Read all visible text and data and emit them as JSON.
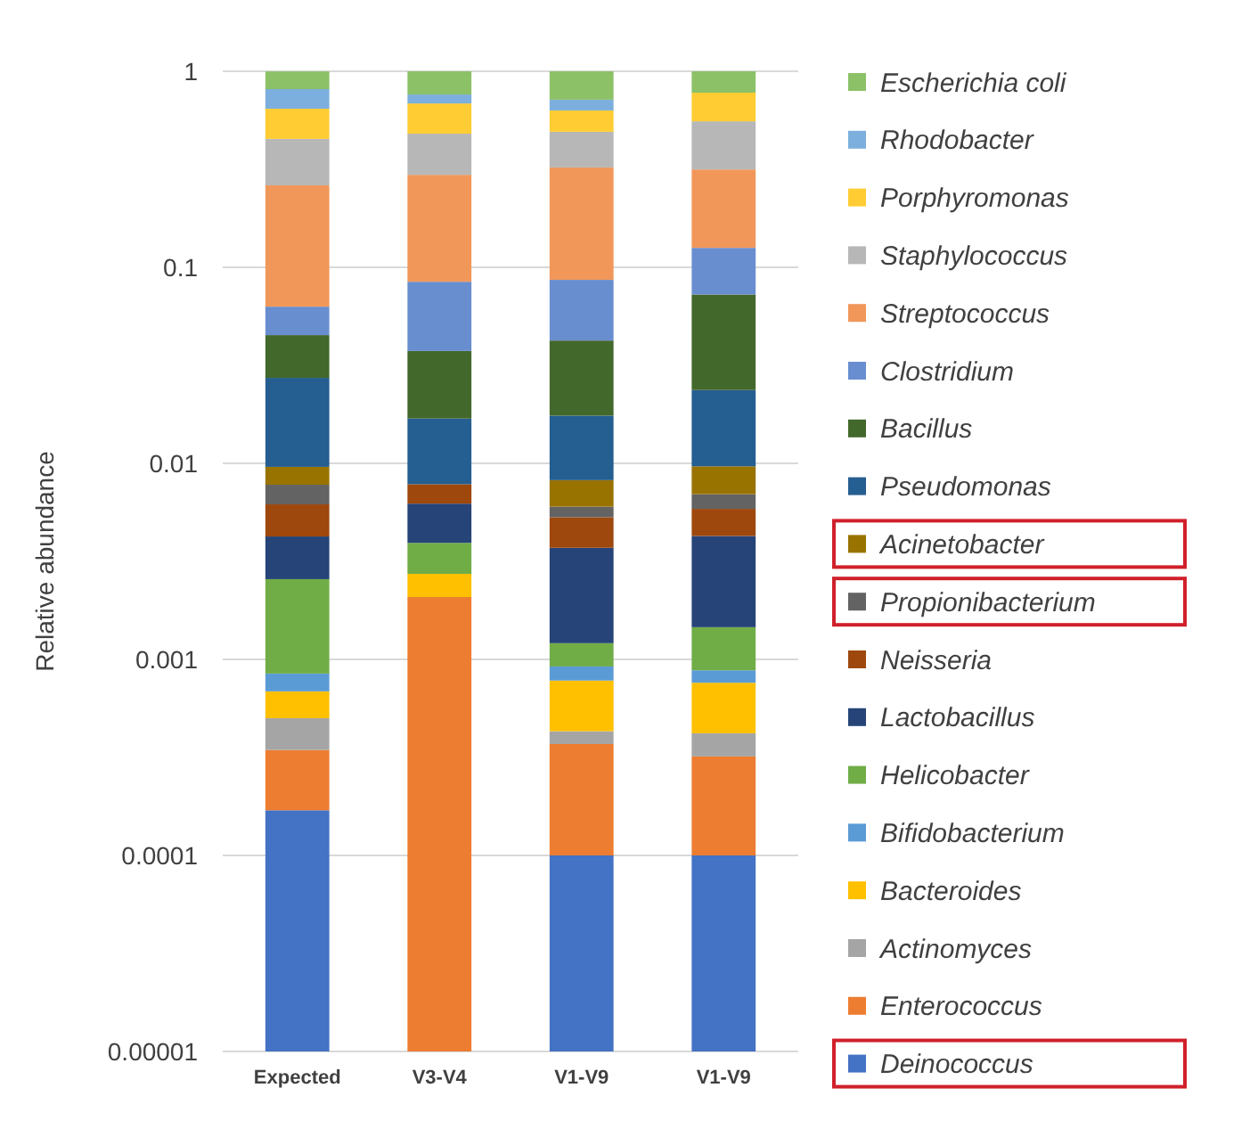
{
  "chart_data": {
    "type": "bar",
    "stacked": true,
    "log": true,
    "ylabel": "Relative abundance",
    "categories": [
      "Expected",
      "V3-V4",
      "V1-V9",
      "V1-V9"
    ],
    "ylim": [
      1e-05,
      1
    ],
    "yticks": [
      {
        "value": 1e-05,
        "label": "0.00001"
      },
      {
        "value": 0.0001,
        "label": "0.0001"
      },
      {
        "value": 0.001,
        "label": "0.001"
      },
      {
        "value": 0.01,
        "label": "0.01"
      },
      {
        "value": 0.1,
        "label": "0.1"
      },
      1
    ],
    "grid": "y",
    "legend": "right",
    "series": [
      {
        "name": "Deinococcus",
        "color": "#4472c4",
        "values": [
          0.00017,
          null,
          0.0001,
          0.0001
        ]
      },
      {
        "name": "Enterococcus",
        "color": "#ed7d31",
        "values": [
          0.000175,
          0.00208,
          0.00027,
          0.00022
        ]
      },
      {
        "name": "Actinomyces",
        "color": "#a5a5a5",
        "values": [
          0.000156,
          null,
          6e-05,
          0.0001
        ]
      },
      {
        "name": "Bacteroides",
        "color": "#ffc000",
        "values": [
          0.000186,
          0.00065,
          0.00035,
          0.00034
        ]
      },
      {
        "name": "Bifidobacterium",
        "color": "#5b9bd5",
        "values": [
          0.00016,
          null,
          0.00014,
          0.00012
        ]
      },
      {
        "name": "Helicobacter",
        "color": "#70ad47",
        "values": [
          0.00172,
          0.0012,
          0.00029,
          0.00058
        ]
      },
      {
        "name": "Lactobacillus",
        "color": "#264478",
        "values": [
          0.00167,
          0.0023,
          0.0025,
          0.0028
        ]
      },
      {
        "name": "Neisseria",
        "color": "#9e480e",
        "values": [
          0.00194,
          0.0016,
          0.0016,
          0.0016
        ]
      },
      {
        "name": "Propionibacterium",
        "color": "#636363",
        "values": [
          0.0016,
          null,
          0.0007,
          0.0011
        ]
      },
      {
        "name": "Acinetobacter",
        "color": "#997300",
        "values": [
          0.00182,
          null,
          0.0022,
          0.0027
        ]
      },
      {
        "name": "Pseudomonas",
        "color": "#255e91",
        "values": [
          0.0177,
          0.0091,
          0.0093,
          0.014
        ]
      },
      {
        "name": "Bacillus",
        "color": "#43682b",
        "values": [
          0.0178,
          0.0205,
          0.0248,
          0.049
        ]
      },
      {
        "name": "Clostridium",
        "color": "#698ed0",
        "values": [
          0.0179,
          0.047,
          0.044,
          0.053
        ]
      },
      {
        "name": "Streptococcus",
        "color": "#f1975a",
        "values": [
          0.199,
          0.212,
          0.237,
          0.19
        ]
      },
      {
        "name": "Staphylococcus",
        "color": "#b7b7b7",
        "values": [
          0.19,
          0.184,
          0.168,
          0.24
        ]
      },
      {
        "name": "Porphyromonas",
        "color": "#ffcd33",
        "values": [
          0.192,
          0.205,
          0.14,
          0.222
        ]
      },
      {
        "name": "Rhodobacter",
        "color": "#7cafdd",
        "values": [
          0.167,
          0.076,
          0.085,
          null
        ]
      },
      {
        "name": "Escherichia coli",
        "color": "#8cc168",
        "values": [
          0.188,
          0.238,
          0.283,
          0.222
        ]
      }
    ]
  }
}
